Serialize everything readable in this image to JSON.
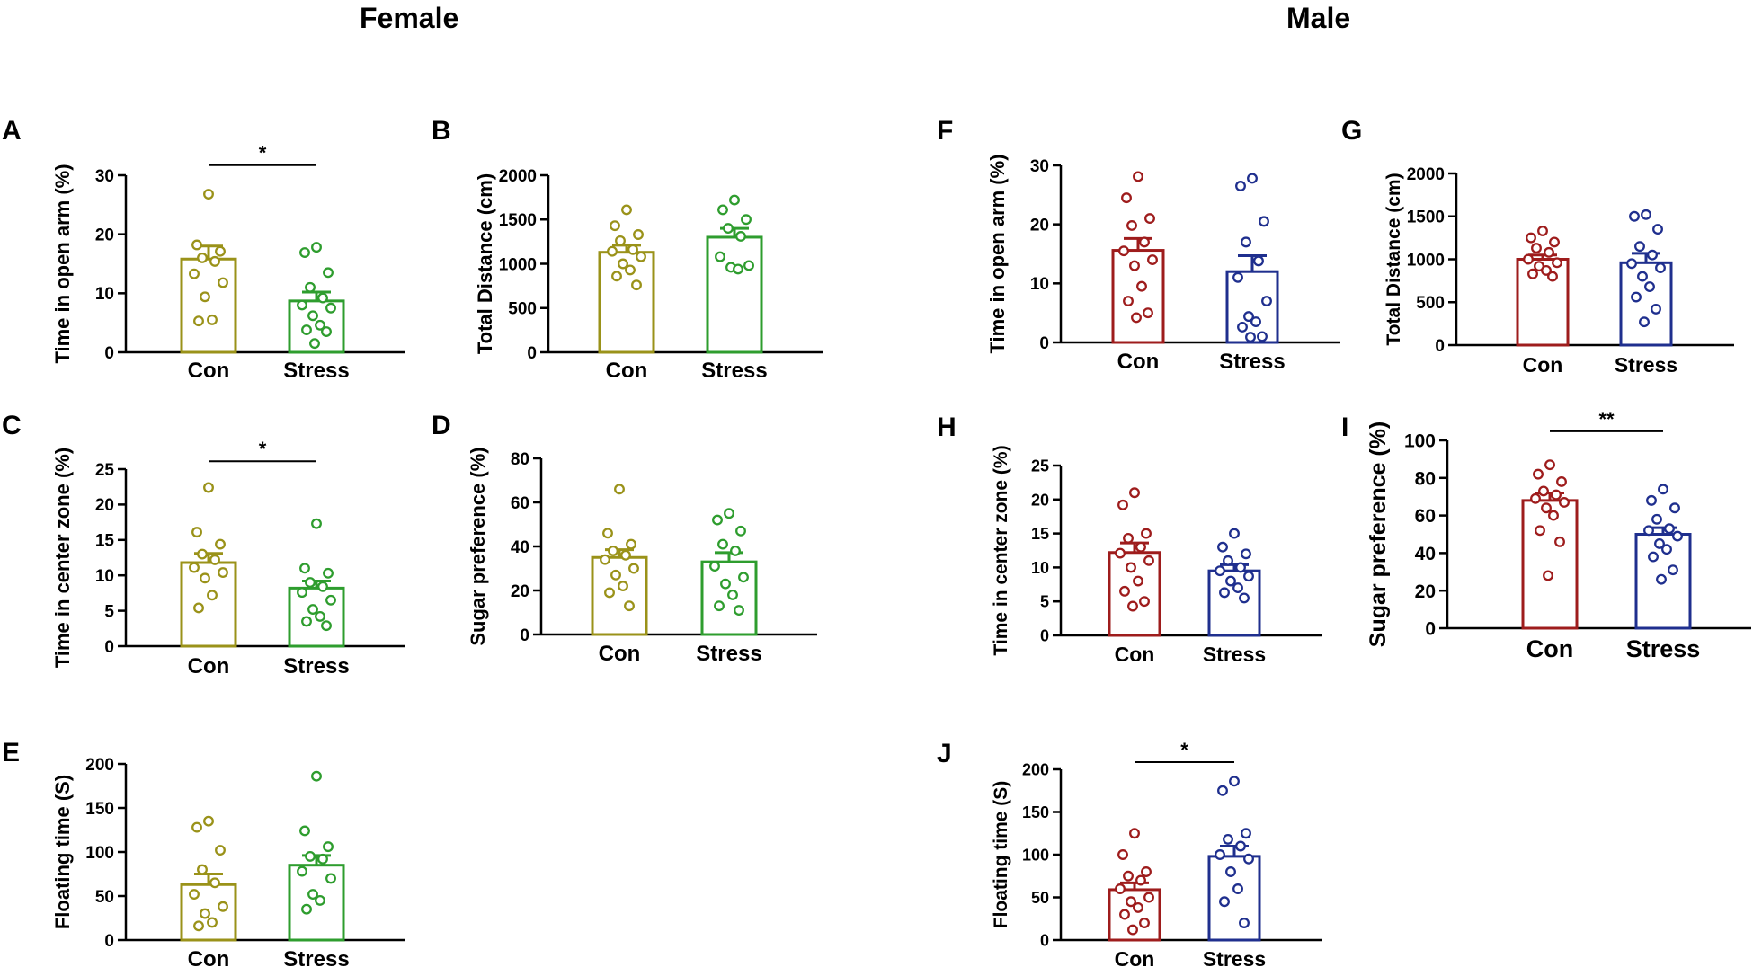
{
  "titles": {
    "female": "Female",
    "male": "Male"
  },
  "colors": {
    "female_con": "#9a9219",
    "female_stress": "#2e9d2e",
    "male_con": "#9e1c1c",
    "male_stress": "#1f2f8e"
  },
  "chart_data": [
    {
      "panel": "A",
      "type": "bar",
      "group": "female",
      "ylabel": "Time in open arm (%)",
      "categories": [
        "Con",
        "Stress"
      ],
      "ylim": [
        0,
        30
      ],
      "yticks": [
        0,
        10,
        20,
        30
      ],
      "tick_labels": [
        "0",
        "10",
        "20",
        "30"
      ],
      "bars": [
        {
          "name": "Con",
          "mean": 15.8,
          "sem": 2.2,
          "color_key": "female_con",
          "points": [
            26.8,
            18.2,
            17.1,
            16.0,
            15.4,
            13.3,
            11.8,
            9.4,
            5.5,
            5.3
          ]
        },
        {
          "name": "Stress",
          "mean": 8.7,
          "sem": 1.5,
          "color_key": "female_stress",
          "points": [
            17.8,
            16.9,
            13.5,
            11.0,
            9.2,
            8.0,
            7.5,
            6.2,
            4.6,
            3.8,
            3.5,
            1.5
          ]
        }
      ],
      "significance": {
        "text": "*",
        "value": 30.5
      }
    },
    {
      "panel": "B",
      "type": "bar",
      "group": "female",
      "ylabel": "Total Distance (cm)",
      "categories": [
        "Con",
        "Stress"
      ],
      "ylim": [
        0,
        2000
      ],
      "yticks": [
        0,
        500,
        1000,
        1500,
        2000
      ],
      "tick_labels": [
        "0",
        "500",
        "1000",
        "1500",
        "2000"
      ],
      "bars": [
        {
          "name": "Con",
          "mean": 1130,
          "sem": 80,
          "color_key": "female_con",
          "points": [
            1610,
            1430,
            1330,
            1260,
            1160,
            1140,
            1080,
            1000,
            930,
            860,
            760
          ]
        },
        {
          "name": "Stress",
          "mean": 1300,
          "sem": 100,
          "color_key": "female_stress",
          "points": [
            1720,
            1610,
            1500,
            1400,
            1310,
            1080,
            980,
            960,
            940
          ]
        }
      ],
      "significance": null
    },
    {
      "panel": "C",
      "type": "bar",
      "group": "female",
      "ylabel": "Time in center zone (%)",
      "categories": [
        "Con",
        "Stress"
      ],
      "ylim": [
        0,
        25
      ],
      "yticks": [
        0,
        5,
        10,
        15,
        20,
        25
      ],
      "tick_labels": [
        "0",
        "5",
        "10",
        "15",
        "20",
        "25"
      ],
      "bars": [
        {
          "name": "Con",
          "mean": 11.8,
          "sem": 1.3,
          "color_key": "female_con",
          "points": [
            22.4,
            16.1,
            14.4,
            13.0,
            12.2,
            11.1,
            10.4,
            9.6,
            7.2,
            5.4
          ]
        },
        {
          "name": "Stress",
          "mean": 8.2,
          "sem": 1.0,
          "color_key": "female_stress",
          "points": [
            17.3,
            11.0,
            10.3,
            9.0,
            8.4,
            7.6,
            6.5,
            5.2,
            4.2,
            3.5,
            2.9
          ]
        }
      ],
      "significance": {
        "text": "*",
        "value": 25.1
      }
    },
    {
      "panel": "D",
      "type": "bar",
      "group": "female",
      "ylabel": "Sugar preference (%)",
      "categories": [
        "Con",
        "Stress"
      ],
      "ylim": [
        0,
        80
      ],
      "yticks": [
        0,
        20,
        40,
        60,
        80
      ],
      "tick_labels": [
        "0",
        "20",
        "40",
        "60",
        "80"
      ],
      "bars": [
        {
          "name": "Con",
          "mean": 35,
          "sem": 3.5,
          "color_key": "female_con",
          "points": [
            66,
            46,
            41,
            38,
            36,
            34,
            30,
            27,
            22,
            19,
            13
          ]
        },
        {
          "name": "Stress",
          "mean": 33,
          "sem": 4.2,
          "color_key": "female_stress",
          "points": [
            55,
            52,
            47,
            41,
            38,
            31,
            26,
            23,
            18,
            13,
            11
          ]
        }
      ],
      "significance": null
    },
    {
      "panel": "E",
      "type": "bar",
      "group": "female",
      "ylabel": "Floating time (S)",
      "categories": [
        "Con",
        "Stress"
      ],
      "ylim": [
        0,
        200
      ],
      "yticks": [
        0,
        50,
        100,
        150,
        200
      ],
      "tick_labels": [
        "0",
        "50",
        "100",
        "150",
        "200"
      ],
      "bars": [
        {
          "name": "Con",
          "mean": 63,
          "sem": 12,
          "color_key": "female_con",
          "points": [
            135,
            128,
            102,
            80,
            65,
            52,
            38,
            30,
            20,
            16
          ]
        },
        {
          "name": "Stress",
          "mean": 85,
          "sem": 11,
          "color_key": "female_stress",
          "points": [
            186,
            124,
            106,
            95,
            92,
            78,
            70,
            52,
            45,
            35
          ]
        }
      ],
      "significance": null
    },
    {
      "panel": "F",
      "type": "bar",
      "group": "male",
      "ylabel": "Time in open arm (%)",
      "categories": [
        "Con",
        "Stress"
      ],
      "ylim": [
        0,
        30
      ],
      "yticks": [
        0,
        10,
        20,
        30
      ],
      "tick_labels": [
        "0",
        "10",
        "20",
        "30"
      ],
      "bars": [
        {
          "name": "Con",
          "mean": 15.6,
          "sem": 2.0,
          "color_key": "male_con",
          "points": [
            28.1,
            24.5,
            21.0,
            19.8,
            17.0,
            15.5,
            14.0,
            13.0,
            9.5,
            7.0,
            5.0,
            4.2
          ]
        },
        {
          "name": "Stress",
          "mean": 12.0,
          "sem": 2.7,
          "color_key": "male_stress",
          "points": [
            27.8,
            26.5,
            20.5,
            17.0,
            13.8,
            11.0,
            7.0,
            4.4,
            3.5,
            2.6,
            1.0,
            0.9
          ]
        }
      ],
      "significance": null
    },
    {
      "panel": "G",
      "type": "bar",
      "group": "male",
      "ylabel": "Total Distance (cm)",
      "categories": [
        "Con",
        "Stress"
      ],
      "ylim": [
        0,
        2000
      ],
      "yticks": [
        0,
        500,
        1000,
        1500,
        2000
      ],
      "tick_labels": [
        "0",
        "500",
        "1000",
        "1500",
        "2000"
      ],
      "bars": [
        {
          "name": "Con",
          "mean": 1000,
          "sem": 50,
          "color_key": "male_con",
          "points": [
            1330,
            1250,
            1200,
            1130,
            1080,
            1000,
            960,
            920,
            870,
            830,
            800
          ]
        },
        {
          "name": "Stress",
          "mean": 960,
          "sem": 110,
          "color_key": "male_stress",
          "points": [
            1520,
            1500,
            1350,
            1150,
            1050,
            950,
            900,
            800,
            680,
            560,
            420,
            270
          ]
        }
      ],
      "significance": null
    },
    {
      "panel": "H",
      "type": "bar",
      "group": "male",
      "ylabel": "Time in center zone (%)",
      "categories": [
        "Con",
        "Stress"
      ],
      "ylim": [
        0,
        25
      ],
      "yticks": [
        0,
        5,
        10,
        15,
        20,
        25
      ],
      "tick_labels": [
        "0",
        "5",
        "10",
        "15",
        "20",
        "25"
      ],
      "bars": [
        {
          "name": "Con",
          "mean": 12.2,
          "sem": 1.4,
          "color_key": "male_con",
          "points": [
            21.0,
            19.2,
            15.0,
            14.3,
            13.0,
            12.1,
            11.0,
            10.0,
            8.0,
            6.5,
            5.0,
            4.3
          ]
        },
        {
          "name": "Stress",
          "mean": 9.5,
          "sem": 0.9,
          "color_key": "male_stress",
          "points": [
            15.0,
            13.0,
            12.0,
            11.0,
            10.0,
            9.5,
            8.7,
            8.0,
            7.0,
            6.3,
            5.5
          ]
        }
      ],
      "significance": null
    },
    {
      "panel": "I",
      "type": "bar",
      "group": "male",
      "ylabel": "Sugar preference (%)",
      "categories": [
        "Con",
        "Stress"
      ],
      "ylim": [
        0,
        100
      ],
      "yticks": [
        0,
        20,
        40,
        60,
        80,
        100
      ],
      "tick_labels": [
        "0",
        "20",
        "40",
        "60",
        "80",
        "100"
      ],
      "bars": [
        {
          "name": "Con",
          "mean": 68,
          "sem": 4,
          "color_key": "male_con",
          "points": [
            87,
            82,
            78,
            73,
            71,
            69,
            67,
            64,
            60,
            52,
            46,
            28
          ]
        },
        {
          "name": "Stress",
          "mean": 50,
          "sem": 3.5,
          "color_key": "male_stress",
          "points": [
            74,
            68,
            64,
            58,
            53,
            52,
            49,
            45,
            42,
            38,
            31,
            26
          ]
        }
      ],
      "significance": {
        "text": "**",
        "value": 101
      }
    },
    {
      "panel": "J",
      "type": "bar",
      "group": "male",
      "ylabel": "Floating time (S)",
      "categories": [
        "Con",
        "Stress"
      ],
      "ylim": [
        0,
        200
      ],
      "yticks": [
        0,
        50,
        100,
        150,
        200
      ],
      "tick_labels": [
        "0",
        "50",
        "100",
        "150",
        "200"
      ],
      "bars": [
        {
          "name": "Con",
          "mean": 59,
          "sem": 8,
          "color_key": "male_con",
          "points": [
            125,
            100,
            80,
            75,
            70,
            60,
            50,
            45,
            38,
            30,
            20,
            12
          ]
        },
        {
          "name": "Stress",
          "mean": 98,
          "sem": 12,
          "color_key": "male_stress",
          "points": [
            186,
            175,
            125,
            118,
            110,
            100,
            95,
            80,
            60,
            45,
            20
          ]
        }
      ],
      "significance": {
        "text": "*",
        "value": 200
      }
    }
  ]
}
